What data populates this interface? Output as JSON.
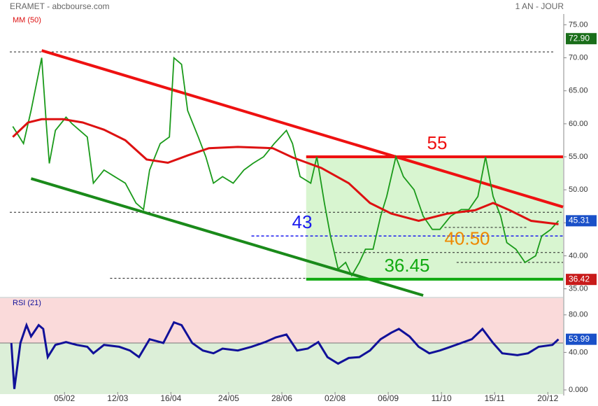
{
  "chart_data": {
    "type": "stock",
    "title": "ERAMET - abcbourse.com",
    "subtitle": "1 AN - JOUR",
    "xlim": [
      -36,
      328
    ],
    "xticks": [
      {
        "value": 0,
        "label": "05/02"
      },
      {
        "value": 35,
        "label": "12/03"
      },
      {
        "value": 70,
        "label": "16/04"
      },
      {
        "value": 108,
        "label": "24/05"
      },
      {
        "value": 143,
        "label": "28/06"
      },
      {
        "value": 178,
        "label": "02/08"
      },
      {
        "value": 213,
        "label": "06/09"
      },
      {
        "value": 248,
        "label": "11/10"
      },
      {
        "value": 283,
        "label": "15/11"
      },
      {
        "value": 318,
        "label": "20/12"
      }
    ],
    "ylim": [
      34,
      76
    ],
    "yticks": [
      {
        "value": 35,
        "label": "35.00"
      },
      {
        "value": 40,
        "label": "40.00"
      },
      {
        "value": 45,
        "label": "45.00"
      },
      {
        "value": 50,
        "label": "50.00"
      },
      {
        "value": 55,
        "label": "55.00"
      },
      {
        "value": 60,
        "label": "60.00"
      },
      {
        "value": 65,
        "label": "65.00"
      },
      {
        "value": 70,
        "label": "70.00"
      },
      {
        "value": 75,
        "label": "75.00"
      }
    ],
    "series": [
      {
        "name": "ERAMET",
        "color": "#1a9a1a",
        "x": [
          -34,
          -27,
          -22,
          -15,
          -12,
          -10,
          -6,
          1,
          5,
          10,
          15,
          19,
          26,
          33,
          40,
          47,
          52,
          56,
          63,
          69,
          72,
          77,
          81,
          88,
          93,
          98,
          104,
          111,
          118,
          124,
          131,
          138,
          146,
          150,
          155,
          162,
          166,
          171,
          175,
          180,
          185,
          189,
          194,
          198,
          203,
          208,
          212,
          218,
          223,
          230,
          236,
          242,
          247,
          254,
          261,
          266,
          272,
          277,
          282,
          287,
          291,
          297,
          303,
          310,
          314,
          320,
          325
        ],
        "values": [
          59.6,
          57,
          62,
          70,
          60,
          54,
          59,
          61,
          60,
          59,
          58,
          51,
          53,
          52,
          51,
          48,
          47,
          53,
          57,
          58,
          70,
          69,
          62,
          58,
          55,
          51,
          52,
          51,
          53,
          54,
          55,
          57,
          59,
          57,
          52,
          51,
          55,
          48,
          43,
          38,
          39,
          37,
          39,
          41,
          41,
          46,
          49,
          55,
          52,
          50,
          46,
          44,
          44,
          46,
          47,
          47,
          49,
          55,
          49,
          46,
          42,
          41,
          39,
          40,
          43,
          44,
          45.31
        ]
      },
      {
        "name": "MM (50)",
        "color": "#dd1111",
        "x": [
          -34,
          -24,
          -15,
          -1,
          12,
          26,
          40,
          54,
          68,
          81,
          95,
          114,
          137,
          150,
          169,
          187,
          201,
          215,
          233,
          252,
          270,
          282,
          293,
          307,
          325
        ],
        "values": [
          58,
          60.2,
          60.7,
          60.7,
          60.2,
          59.1,
          57.5,
          54.6,
          54.1,
          55.2,
          56.3,
          56.5,
          56.3,
          54.9,
          53.3,
          51,
          48,
          46.4,
          45.3,
          46.4,
          46.9,
          48,
          46.9,
          45.3,
          44.8
        ]
      }
    ],
    "trendlines": [
      {
        "x": [
          -15,
          328
        ],
        "y": [
          71.1,
          47.4
        ],
        "color": "#ee1111"
      },
      {
        "x": [
          -22,
          236
        ],
        "y": [
          51.7,
          34
        ],
        "color": "#1a8a1a"
      }
    ],
    "levels": [
      {
        "value": 55,
        "label": "55",
        "from": 159,
        "color": "#ee1111",
        "style": "solid"
      },
      {
        "value": 43,
        "label": "43",
        "from": 123,
        "color": "#1a1aee",
        "style": "dashed"
      },
      {
        "value": 40.5,
        "label": "40.50",
        "from": 178,
        "color": "#ee8800",
        "style": "dotted"
      },
      {
        "value": 36.45,
        "label": "36.45",
        "from": 159,
        "color": "#11aa11",
        "style": "solid"
      }
    ],
    "dotted_levels": [
      {
        "value": 70.9,
        "from": -36,
        "to": 322
      },
      {
        "value": 46.6,
        "from": -36,
        "to": 328
      },
      {
        "value": 36.6,
        "from": 30,
        "to": 159
      },
      {
        "value": 44.3,
        "from": 250,
        "to": 305
      },
      {
        "value": 39,
        "from": 258,
        "to": 328
      }
    ],
    "zone": {
      "from": 159,
      "top": 55,
      "bottom": 36.45,
      "color": "#d8f5d0"
    },
    "price_tags": [
      {
        "value": 72.9,
        "label": "72.90",
        "color": "#1a6e1a"
      },
      {
        "value": 45.31,
        "label": "45.31",
        "color": "#1a50c8"
      },
      {
        "value": 36.42,
        "label": "36.42",
        "color": "#c81a1a"
      }
    ],
    "rsi": {
      "name": "RSI (21)",
      "color": "#111199",
      "ylim": [
        0,
        100
      ],
      "yticks": [
        {
          "value": 0,
          "label": "0.000"
        },
        {
          "value": 40,
          "label": "40.00"
        },
        {
          "value": 80,
          "label": "80.00"
        }
      ],
      "midline": 50,
      "x": [
        -35,
        -33,
        -29,
        -25,
        -22,
        -17,
        -14,
        -11,
        -6,
        1,
        8,
        15,
        19,
        26,
        36,
        43,
        49,
        56,
        65,
        72,
        77,
        84,
        91,
        98,
        104,
        114,
        123,
        132,
        139,
        146,
        153,
        160,
        167,
        173,
        180,
        187,
        194,
        201,
        208,
        215,
        220,
        227,
        233,
        240,
        247,
        254,
        261,
        268,
        275,
        282,
        288,
        298,
        305,
        312,
        321,
        325
      ],
      "values": [
        50,
        1,
        50,
        69,
        57,
        69,
        65,
        35,
        48,
        51,
        48,
        46,
        39,
        48,
        46,
        42,
        35,
        54,
        50,
        72,
        69,
        50,
        42,
        39,
        44,
        42,
        46,
        51,
        56,
        59,
        42,
        44,
        51,
        35,
        28,
        34,
        35,
        42,
        54,
        61,
        65,
        57,
        46,
        39,
        42,
        46,
        50,
        54,
        65,
        50,
        39,
        37,
        39,
        46,
        48,
        53.99
      ],
      "tag": {
        "value": 53.99,
        "label": "53.99",
        "color": "#1a50c8"
      }
    }
  }
}
